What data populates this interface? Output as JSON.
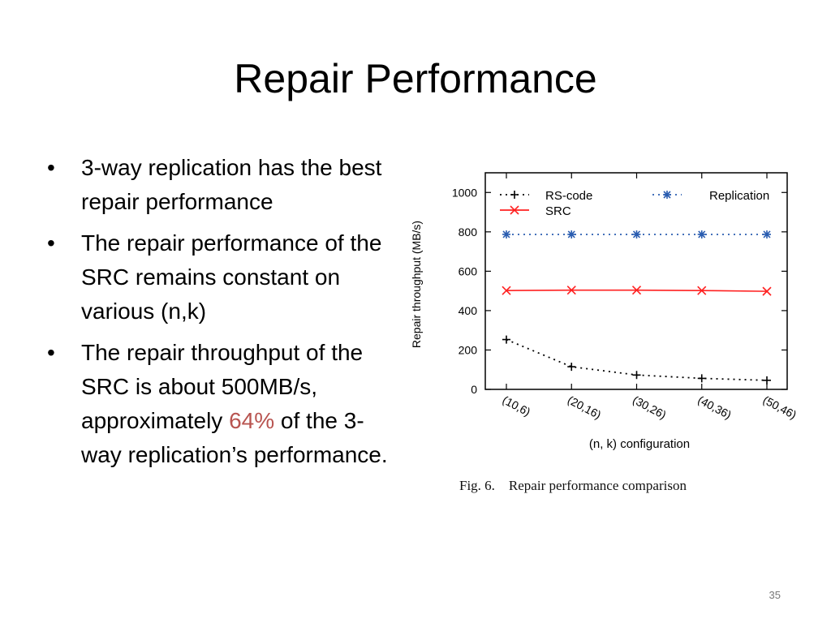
{
  "slide": {
    "title": "Repair Performance",
    "bullets": [
      {
        "parts": [
          {
            "text": "3-way replication has the best repair performance",
            "highlight": false
          }
        ]
      },
      {
        "parts": [
          {
            "text": "The repair performance of the SRC remains constant on various (n,k)",
            "highlight": false
          }
        ]
      },
      {
        "parts": [
          {
            "text": "The repair throughput of the SRC is about 500MB/s, approximately ",
            "highlight": false
          },
          {
            "text": "64%",
            "highlight": true
          },
          {
            "text": " of the 3-way replication’s performance.",
            "highlight": false
          }
        ]
      }
    ],
    "caption": "Fig. 6.    Repair performance comparison",
    "page_number": "35",
    "colors": {
      "highlight": "#b85450"
    }
  },
  "chart_data": {
    "type": "line",
    "title": "",
    "xlabel": "(n, k) configuration",
    "ylabel": "Repair throughput (MB/s)",
    "categories": [
      "(10,6)",
      "(20,16)",
      "(30,26)",
      "(40,36)",
      "(50,46)"
    ],
    "ylim": [
      0,
      1100
    ],
    "yticks": [
      0,
      200,
      400,
      600,
      800,
      1000
    ],
    "grid": false,
    "legend_position": "top",
    "series": [
      {
        "name": "RS-code",
        "values": [
          253,
          115,
          73,
          56,
          46
        ],
        "color": "#000000",
        "line": "dotted",
        "marker": "plus"
      },
      {
        "name": "Replication",
        "values": [
          787,
          787,
          787,
          787,
          787
        ],
        "color": "#2a5db0",
        "line": "dotted",
        "marker": "star"
      },
      {
        "name": "SRC",
        "values": [
          502,
          504,
          504,
          502,
          498
        ],
        "color": "#ff2020",
        "line": "solid",
        "marker": "x"
      }
    ]
  }
}
